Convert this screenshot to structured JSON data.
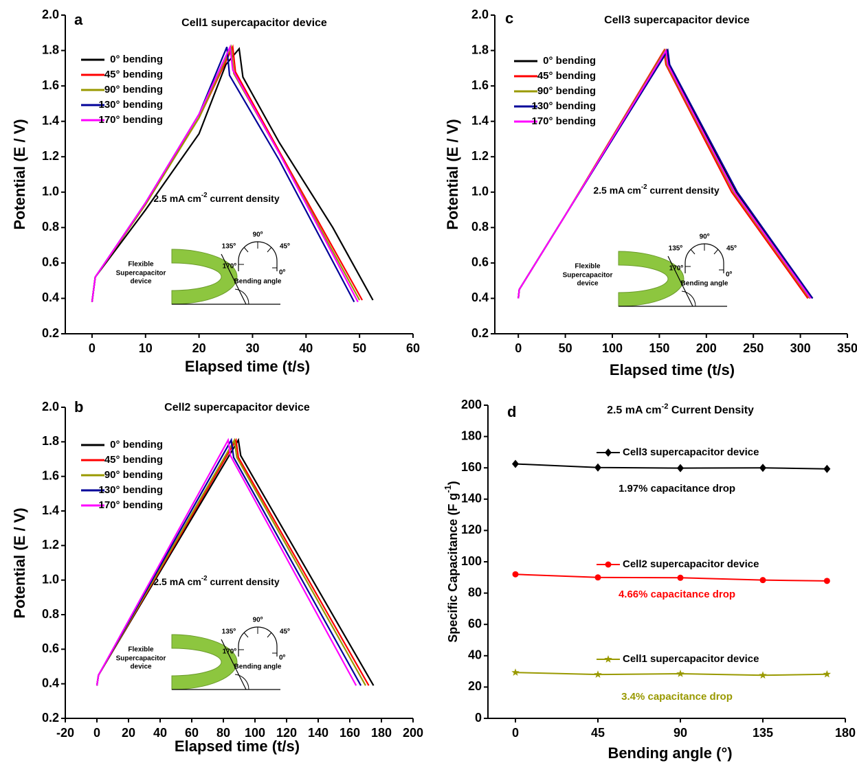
{
  "chart_data": [
    {
      "type": "line",
      "panel_label": "a",
      "title": "Cell1 supercapacitor device",
      "x_label": "Elapsed time (t/s)",
      "y_label": "Potential (E / V)",
      "note": [
        "2.5 mA cm",
        "-2",
        " current density"
      ],
      "xlim": [
        -5,
        60
      ],
      "xticks": [
        0,
        10,
        20,
        30,
        40,
        50,
        60
      ],
      "ylim": [
        0.2,
        2.0
      ],
      "yticks": [
        0.2,
        0.4,
        0.6,
        0.8,
        {
          "value": 1,
          "label": "1.0"
        },
        1.2,
        1.4,
        1.6,
        1.8,
        {
          "value": 2,
          "label": "2.0"
        }
      ],
      "legend": "upper left",
      "series": [
        {
          "name": "0° bending",
          "color": "#000000",
          "x": [
            0,
            0.6,
            10,
            20,
            25,
            27.5,
            28.2,
            35,
            45,
            52.5
          ],
          "values": [
            0.38,
            0.52,
            0.9,
            1.33,
            1.72,
            1.81,
            1.65,
            1.28,
            0.8,
            0.39
          ]
        },
        {
          "name": "45° bending",
          "color": "#ff0000",
          "x": [
            0,
            0.6,
            10,
            20,
            26.3,
            26.8,
            35,
            50.5
          ],
          "values": [
            0.38,
            0.52,
            0.93,
            1.42,
            1.82,
            1.68,
            1.23,
            0.39
          ]
        },
        {
          "name": "90° bending",
          "color": "#999900",
          "x": [
            0,
            0.6,
            10,
            20,
            26,
            26.5,
            35,
            50
          ],
          "values": [
            0.38,
            0.52,
            0.93,
            1.42,
            1.82,
            1.67,
            1.22,
            0.39
          ]
        },
        {
          "name": "130° bending",
          "color": "#000099",
          "x": [
            0,
            0.6,
            10,
            20,
            25.2,
            25.7,
            35,
            49
          ],
          "values": [
            0.38,
            0.52,
            0.94,
            1.44,
            1.82,
            1.66,
            1.18,
            0.38
          ]
        },
        {
          "name": "170° bending",
          "color": "#ff00ff",
          "x": [
            0,
            0.6,
            10,
            20,
            25.8,
            26.3,
            35,
            49.7
          ],
          "values": [
            0.38,
            0.52,
            0.94,
            1.44,
            1.82,
            1.69,
            1.22,
            0.38
          ]
        }
      ],
      "inset": {
        "angles": [
          "90º",
          "135º",
          "45º",
          "170º",
          "0º"
        ],
        "device": [
          "Flexible",
          "Supercapacitor",
          "device"
        ],
        "caption": "Bending angle"
      }
    },
    {
      "type": "line",
      "panel_label": "b",
      "title": "Cell2 supercapacitor device",
      "x_label": "Elapsed time (t/s)",
      "y_label": "Potential (E / V)",
      "note": [
        "2.5 mA cm",
        "-2",
        " current density"
      ],
      "xlim": [
        -20,
        200
      ],
      "xticks": [
        -20,
        0,
        20,
        40,
        60,
        80,
        100,
        120,
        140,
        160,
        180,
        200
      ],
      "ylim": [
        0.2,
        2.0
      ],
      "yticks": [
        0.2,
        0.4,
        0.6,
        0.8,
        {
          "value": 1,
          "label": "1.0"
        },
        1.2,
        1.4,
        1.6,
        1.8,
        {
          "value": 2,
          "label": "2.0"
        }
      ],
      "legend": "upper left",
      "series": [
        {
          "name": "0° bending",
          "color": "#000000",
          "x": [
            0,
            1,
            89.5,
            91,
            175
          ],
          "values": [
            0.39,
            0.45,
            1.81,
            1.72,
            0.39
          ]
        },
        {
          "name": "45° bending",
          "color": "#ff0000",
          "x": [
            0,
            1,
            88,
            89.5,
            172
          ],
          "values": [
            0.39,
            0.45,
            1.81,
            1.71,
            0.39
          ]
        },
        {
          "name": "90° bending",
          "color": "#999900",
          "x": [
            0,
            1,
            87,
            88.5,
            170
          ],
          "values": [
            0.39,
            0.45,
            1.81,
            1.71,
            0.39
          ]
        },
        {
          "name": "130° bending",
          "color": "#000099",
          "x": [
            0,
            1,
            85,
            86.5,
            167
          ],
          "values": [
            0.39,
            0.45,
            1.81,
            1.71,
            0.39
          ]
        },
        {
          "name": "170° bending",
          "color": "#ff00ff",
          "x": [
            0,
            1,
            83,
            84.5,
            164
          ],
          "values": [
            0.39,
            0.45,
            1.81,
            1.72,
            0.39
          ]
        }
      ],
      "inset": {
        "angles": [
          "90º",
          "135º",
          "45º",
          "170º",
          "0º"
        ],
        "device": [
          "Flexible",
          "Supercapacitor",
          "device"
        ],
        "caption": "Bending angle"
      }
    },
    {
      "type": "line",
      "panel_label": "c",
      "title": "Cell3 supercapacitor device",
      "x_label": "Elapsed time (t/s)",
      "y_label": "Potential (E / V)",
      "note": [
        "2.5 mA cm",
        "-2",
        " current density"
      ],
      "xlim": [
        -25,
        350
      ],
      "xticks": [
        0,
        50,
        100,
        150,
        200,
        250,
        300,
        350
      ],
      "ylim": [
        0.2,
        2.0
      ],
      "yticks": [
        0.2,
        0.4,
        0.6,
        0.8,
        {
          "value": 1,
          "label": "1.0"
        },
        1.2,
        1.4,
        1.6,
        1.8,
        {
          "value": 2,
          "label": "2.0"
        }
      ],
      "legend": "upper left",
      "series": [
        {
          "name": "0° bending",
          "color": "#000000",
          "x": [
            0,
            1,
            50,
            158,
            160,
            232,
            313
          ],
          "values": [
            0.4,
            0.45,
            0.87,
            1.8,
            1.72,
            1.0,
            0.4
          ]
        },
        {
          "name": "45° bending",
          "color": "#ff0000",
          "x": [
            0,
            1,
            50,
            155,
            157,
            227,
            308
          ],
          "values": [
            0.4,
            0.45,
            0.87,
            1.8,
            1.72,
            1.0,
            0.4
          ]
        },
        {
          "name": "90° bending",
          "color": "#999900",
          "x": [
            0,
            1,
            50,
            156,
            158,
            229,
            310
          ],
          "values": [
            0.4,
            0.45,
            0.87,
            1.8,
            1.72,
            1.0,
            0.4
          ]
        },
        {
          "name": "130° bending",
          "color": "#000099",
          "x": [
            0,
            1,
            50,
            159,
            161,
            233,
            313
          ],
          "values": [
            0.4,
            0.45,
            0.87,
            1.8,
            1.72,
            1.0,
            0.4
          ]
        },
        {
          "name": "170° bending",
          "color": "#ff00ff",
          "x": [
            0,
            1,
            50,
            157,
            159,
            230,
            311
          ],
          "values": [
            0.4,
            0.45,
            0.87,
            1.8,
            1.72,
            1.0,
            0.4
          ]
        }
      ],
      "inset": {
        "angles": [
          "90º",
          "135º",
          "45º",
          "170º",
          "0º"
        ],
        "device": [
          "Flexible",
          "Supercapacitor",
          "device"
        ],
        "caption": "Bending angle"
      }
    },
    {
      "type": "marker-line",
      "panel_label": "d",
      "title": [
        "2.5 mA cm",
        "-2",
        " Current Density"
      ],
      "x_label": "Bending angle (°)",
      "y_label": [
        "Specific Capacitance (F g",
        "-1",
        ")"
      ],
      "xlim": [
        -15,
        180
      ],
      "xticks": [
        0,
        45,
        90,
        135,
        180
      ],
      "ylim": [
        0,
        200
      ],
      "yticks": [
        0,
        20,
        40,
        60,
        80,
        100,
        120,
        140,
        160,
        180,
        200
      ],
      "x": [
        0,
        45,
        90,
        135,
        170
      ],
      "series": [
        {
          "name": "Cell3 supercapacitor device",
          "color": "#000000",
          "marker": "diamond",
          "values": [
            162.5,
            160.2,
            159.8,
            160,
            159.3
          ],
          "annotation": "1.97% capacitance drop"
        },
        {
          "name": "Cell2 supercapacitor device",
          "color": "#ff0000",
          "marker": "circle",
          "values": [
            92,
            90,
            89.8,
            88.3,
            87.8
          ],
          "annotation": "4.66% capacitance drop"
        },
        {
          "name": "Cell1 supercapacitor device",
          "color": "#999900",
          "marker": "star",
          "values": [
            29.3,
            28,
            28.5,
            27.5,
            28.2
          ],
          "annotation": "3.4% capacitance drop"
        }
      ]
    }
  ]
}
